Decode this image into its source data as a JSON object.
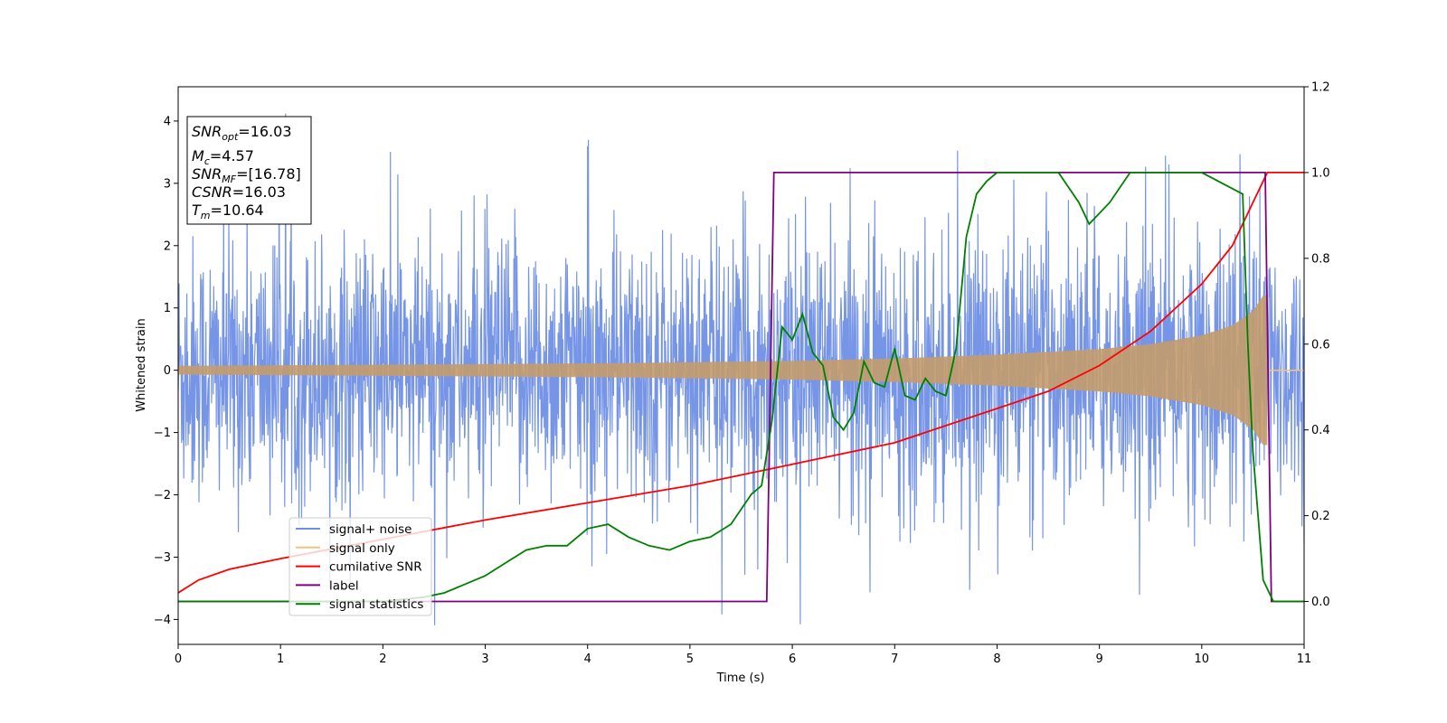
{
  "chart_data": {
    "type": "line",
    "xlabel": "Time (s)",
    "ylabel": "Whitened strain",
    "xlim": [
      0,
      11
    ],
    "ylim_left": [
      -4.4,
      4.55
    ],
    "ylim_right": [
      -0.1,
      1.2
    ],
    "x_ticks": [
      "0",
      "1",
      "2",
      "3",
      "4",
      "5",
      "6",
      "7",
      "8",
      "9",
      "10",
      "11"
    ],
    "y_ticks_left": [
      "−4",
      "−3",
      "−2",
      "−1",
      "0",
      "1",
      "2",
      "3",
      "4"
    ],
    "y_ticks_right": [
      "0.0",
      "0.2",
      "0.4",
      "0.6",
      "0.8",
      "1.0",
      "1.2"
    ],
    "x_tick_values": [
      0,
      1,
      2,
      3,
      4,
      5,
      6,
      7,
      8,
      9,
      10,
      11
    ],
    "y_tick_values_left": [
      -4,
      -3,
      -2,
      -1,
      0,
      1,
      2,
      3,
      4
    ],
    "y_tick_values_right": [
      0.0,
      0.2,
      0.4,
      0.6,
      0.8,
      1.0,
      1.2
    ],
    "legend_position": "lower-left",
    "annotation": {
      "lines": [
        {
          "base": "SNR",
          "sub": "opt",
          "rest": "=16.03"
        },
        {
          "base": "M",
          "sub": "c",
          "rest": "=4.57"
        },
        {
          "base": "SNR",
          "sub": "MF",
          "rest": "=[16.78]"
        },
        {
          "base": "CSNR",
          "sub": "",
          "rest": "=16.03"
        },
        {
          "base": "T",
          "sub": "m",
          "rest": "=10.64"
        }
      ]
    },
    "series": [
      {
        "name": "signal+ noise",
        "color": "#6f8fe6",
        "axis": "left",
        "description_values": {
          "noise_std": 1.0,
          "peak_max": 4.2,
          "peak_min": -4.0
        }
      },
      {
        "name": "signal only",
        "color": "#f3c27a",
        "axis": "left",
        "envelope": {
          "x": [
            0,
            2,
            4,
            6,
            7,
            8,
            9,
            9.5,
            10,
            10.3,
            10.5,
            10.6,
            10.64
          ],
          "amp": [
            0.07,
            0.09,
            0.11,
            0.15,
            0.19,
            0.25,
            0.34,
            0.42,
            0.56,
            0.72,
            0.95,
            1.2,
            1.2
          ]
        }
      },
      {
        "name": "cumilative SNR",
        "color": "#ff0000",
        "axis": "right",
        "x": [
          0,
          0.2,
          0.5,
          1,
          2,
          3,
          4,
          5,
          6,
          7,
          8,
          8.5,
          9,
          9.5,
          10,
          10.3,
          10.5,
          10.64,
          11
        ],
        "y": [
          0.02,
          0.05,
          0.075,
          0.1,
          0.145,
          0.19,
          0.23,
          0.27,
          0.32,
          0.37,
          0.45,
          0.49,
          0.55,
          0.63,
          0.74,
          0.83,
          0.93,
          1.0,
          1.0
        ]
      },
      {
        "name": "label",
        "color": "#800080",
        "axis": "right",
        "x": [
          0,
          5.75,
          5.82,
          10.62,
          10.68,
          11
        ],
        "y": [
          0,
          0,
          1,
          1,
          0,
          0
        ]
      },
      {
        "name": "signal statistics",
        "color": "#008000",
        "axis": "right",
        "x": [
          0,
          0.5,
          1,
          1.5,
          2,
          2.4,
          2.6,
          2.8,
          3,
          3.2,
          3.4,
          3.6,
          3.8,
          4,
          4.2,
          4.4,
          4.6,
          4.8,
          5,
          5.2,
          5.4,
          5.6,
          5.7,
          5.8,
          5.9,
          6,
          6.1,
          6.2,
          6.3,
          6.4,
          6.5,
          6.6,
          6.7,
          6.8,
          6.9,
          7,
          7.1,
          7.2,
          7.3,
          7.4,
          7.5,
          7.6,
          7.7,
          7.8,
          7.9,
          8,
          8.3,
          8.6,
          8.8,
          8.9,
          9.1,
          9.3,
          9.6,
          10,
          10.4,
          10.45,
          10.5,
          10.55,
          10.6,
          10.7,
          11
        ],
        "y": [
          0,
          0,
          0,
          0,
          0,
          0.01,
          0.02,
          0.04,
          0.06,
          0.09,
          0.12,
          0.13,
          0.13,
          0.17,
          0.18,
          0.15,
          0.13,
          0.12,
          0.14,
          0.15,
          0.18,
          0.25,
          0.27,
          0.42,
          0.64,
          0.61,
          0.67,
          0.58,
          0.55,
          0.43,
          0.4,
          0.44,
          0.56,
          0.51,
          0.5,
          0.59,
          0.48,
          0.47,
          0.52,
          0.49,
          0.48,
          0.59,
          0.85,
          0.95,
          0.98,
          1.0,
          1.0,
          1.0,
          0.93,
          0.88,
          0.93,
          1.0,
          1.0,
          1.0,
          0.95,
          0.6,
          0.35,
          0.2,
          0.05,
          0.0,
          0.0
        ]
      }
    ]
  }
}
